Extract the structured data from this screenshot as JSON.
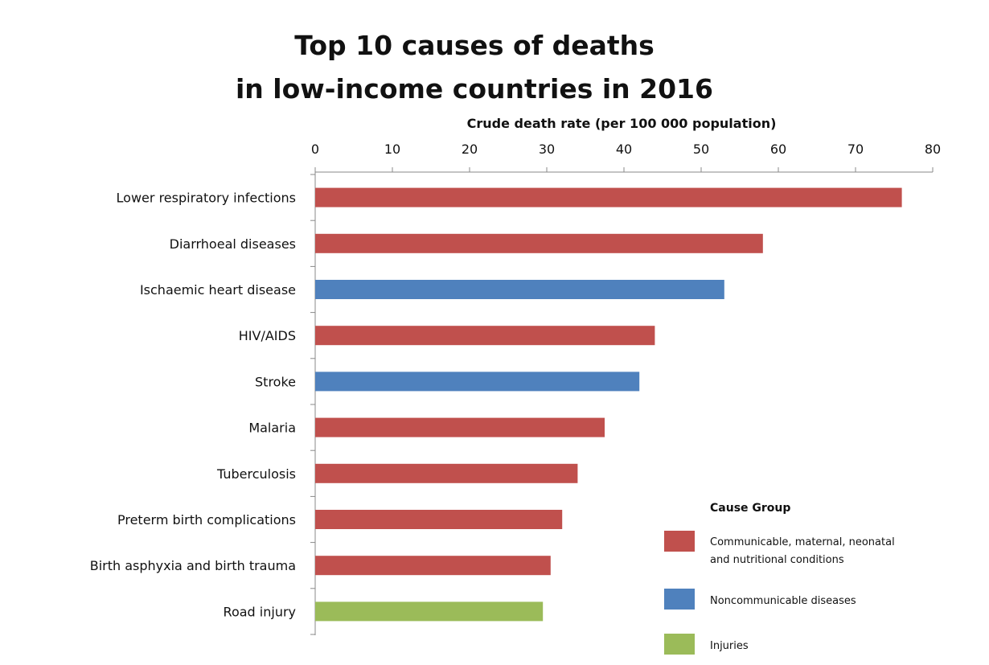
{
  "chart_data": {
    "type": "bar",
    "orientation": "horizontal",
    "title": [
      "Top 10 causes of deaths",
      "in low-income countries in 2016"
    ],
    "xlabel": "Crude death rate (per 100 000 population)",
    "ylabel": "",
    "xlim": [
      0,
      80
    ],
    "ticks": [
      "0",
      "10",
      "20",
      "30",
      "40",
      "50",
      "60",
      "70",
      "80"
    ],
    "grid": false,
    "categories": [
      "Lower respiratory infections",
      "Diarrhoeal diseases",
      "Ischaemic heart disease",
      "HIV/AIDS",
      "Stroke",
      "Malaria",
      "Tuberculosis",
      "Preterm birth complications",
      "Birth asphyxia and birth trauma",
      "Road injury"
    ],
    "values": [
      76,
      58,
      53,
      44,
      42,
      37.5,
      34,
      32,
      30.5,
      29.5
    ],
    "groups": [
      "Communicable, maternal, neonatal and nutritional conditions",
      "Communicable, maternal, neonatal and nutritional conditions",
      "Noncommunicable diseases",
      "Communicable, maternal, neonatal and nutritional conditions",
      "Noncommunicable diseases",
      "Communicable, maternal, neonatal and nutritional conditions",
      "Communicable, maternal, neonatal and nutritional conditions",
      "Communicable, maternal, neonatal and nutritional conditions",
      "Communicable, maternal, neonatal and nutritional conditions",
      "Injuries"
    ],
    "legend": {
      "title": "Cause Group",
      "placement": "bottom-right",
      "entries": [
        {
          "name": "Communicable, maternal, neonatal and nutritional conditions",
          "lines": [
            "Communicable, maternal, neonatal",
            "and nutritional conditions"
          ],
          "color": "#c0504d"
        },
        {
          "name": "Noncommunicable diseases",
          "lines": [
            "Noncommunicable diseases"
          ],
          "color": "#4f81bd"
        },
        {
          "name": "Injuries",
          "lines": [
            "Injuries"
          ],
          "color": "#9bbb59"
        }
      ]
    }
  }
}
